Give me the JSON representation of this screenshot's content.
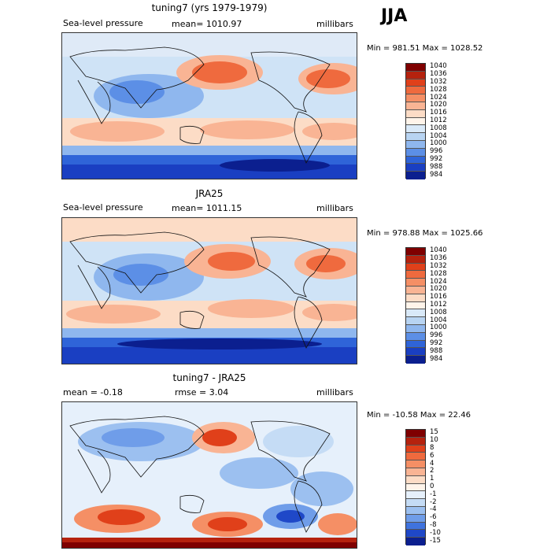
{
  "season": "JJA",
  "panels": [
    {
      "title": "tuning7 (yrs 1979-1979)",
      "subtitle_left": "Sea-level pressure",
      "subtitle_mid": "mean= 1010.97",
      "subtitle_right": "millibars",
      "minmax": "Min = 981.51 Max = 1028.52",
      "legend": [
        "1040",
        "1036",
        "1032",
        "1028",
        "1024",
        "1020",
        "1016",
        "1012",
        "1008",
        "1004",
        "1000",
        "996",
        "992",
        "988",
        "984"
      ],
      "legend_colors": [
        "#7f0000",
        "#b5220e",
        "#e0401a",
        "#ef6a3e",
        "#f58f65",
        "#f9b494",
        "#fcdcc6",
        "#fff4ea",
        "#d9e9f8",
        "#b8d4f2",
        "#8fb7ee",
        "#5c8fe6",
        "#2f64d8",
        "#1a3fc2",
        "#0b1f8f"
      ]
    },
    {
      "title": "JRA25",
      "subtitle_left": "Sea-level pressure",
      "subtitle_mid": "mean= 1011.15",
      "subtitle_right": "millibars",
      "minmax": "Min = 978.88 Max = 1025.66",
      "legend": [
        "1040",
        "1036",
        "1032",
        "1028",
        "1024",
        "1020",
        "1016",
        "1012",
        "1008",
        "1004",
        "1000",
        "996",
        "992",
        "988",
        "984"
      ],
      "legend_colors": [
        "#7f0000",
        "#b5220e",
        "#e0401a",
        "#ef6a3e",
        "#f58f65",
        "#f9b494",
        "#fcdcc6",
        "#fff4ea",
        "#d9e9f8",
        "#b8d4f2",
        "#8fb7ee",
        "#5c8fe6",
        "#2f64d8",
        "#1a3fc2",
        "#0b1f8f"
      ]
    },
    {
      "title": "tuning7 - JRA25",
      "subtitle_left": "mean =   -0.18",
      "subtitle_mid": "rmse =    3.04",
      "subtitle_right": "millibars",
      "minmax": "Min = -10.58 Max =   22.46",
      "legend": [
        "15",
        "10",
        "8",
        "6",
        "4",
        "2",
        "1",
        "0",
        "-1",
        "-2",
        "-4",
        "-6",
        "-8",
        "-10",
        "-15"
      ],
      "legend_colors": [
        "#7f0000",
        "#b5220e",
        "#e0401a",
        "#ef6a3e",
        "#f58f65",
        "#f9b494",
        "#fcdcc6",
        "#fff4ea",
        "#e6f0fb",
        "#c5dcf5",
        "#9cc0f0",
        "#6f9de9",
        "#3f73de",
        "#1f48c8",
        "#0b1f8f"
      ]
    }
  ]
}
